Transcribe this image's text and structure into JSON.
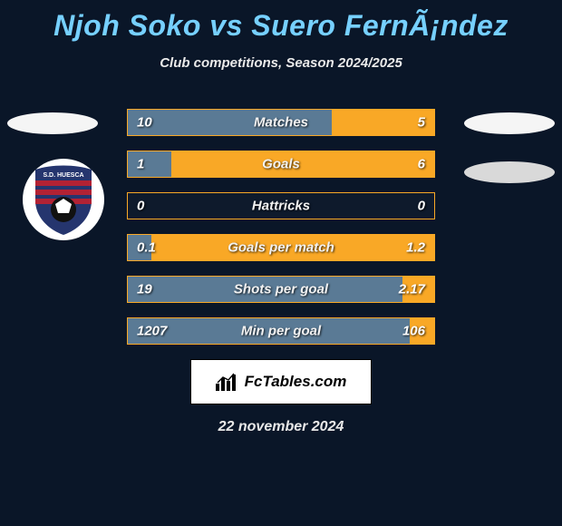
{
  "title": "Njoh Soko vs Suero FernÃ¡ndez",
  "subtitle": "Club competitions, Season 2024/2025",
  "date": "22 november 2024",
  "brand_label": "FcTables.com",
  "colors": {
    "background": "#0a1628",
    "title": "#76d0ff",
    "player1_fill": "#5a7a95",
    "player2_fill": "#f9a826",
    "row_border": "#f9a826"
  },
  "badge": {
    "ring": "#fff",
    "shield_fill": "#25356e",
    "shield_stripes": "#b22234",
    "ball": "#111"
  },
  "stats": [
    {
      "label": "Matches",
      "v1": "10",
      "v2": "5",
      "pct1": 66.7
    },
    {
      "label": "Goals",
      "v1": "1",
      "v2": "6",
      "pct1": 14.3
    },
    {
      "label": "Hattricks",
      "v1": "0",
      "v2": "0",
      "pct1": 0.0
    },
    {
      "label": "Goals per match",
      "v1": "0.1",
      "v2": "1.2",
      "pct1": 7.7
    },
    {
      "label": "Shots per goal",
      "v1": "19",
      "v2": "2.17",
      "pct1": 89.7
    },
    {
      "label": "Min per goal",
      "v1": "1207",
      "v2": "106",
      "pct1": 91.9
    }
  ]
}
